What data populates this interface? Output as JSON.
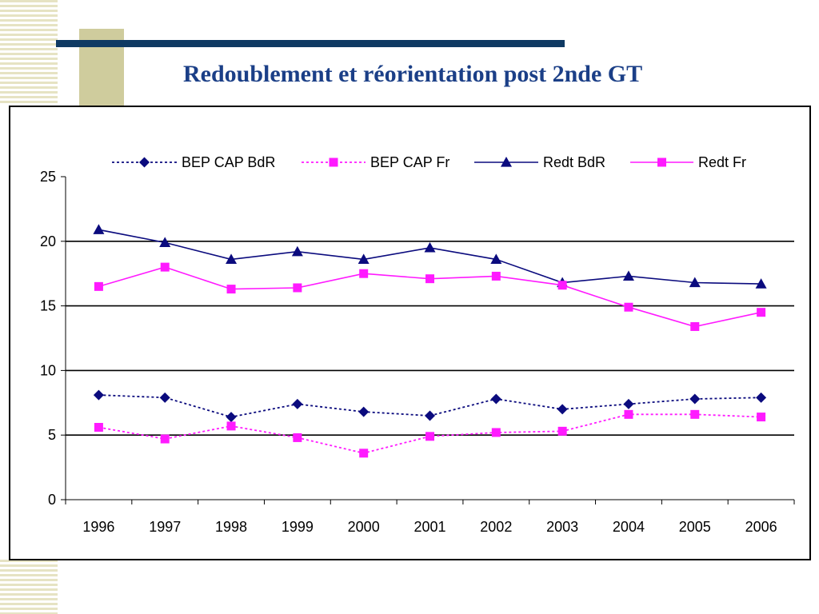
{
  "slide": {
    "title": "Redoublement et réorientation post 2nde GT"
  },
  "colors": {
    "navy_bar": "#0f3a63",
    "olive_block": "#cfcc9d",
    "stripes": "#e6e3c3",
    "title": "#1b3f87"
  },
  "chart_data": {
    "type": "line",
    "title": "",
    "xlabel": "",
    "ylabel": "",
    "categories": [
      "1996",
      "1997",
      "1998",
      "1999",
      "2000",
      "2001",
      "2002",
      "2003",
      "2004",
      "2005",
      "2006"
    ],
    "ylim": [
      0,
      25
    ],
    "yticks": [
      0,
      5,
      10,
      15,
      20,
      25
    ],
    "grid": "horizontal major gridlines",
    "legend_position": "top",
    "series": [
      {
        "name": "BEP CAP BdR",
        "color": "#0b0b7e",
        "line_style": "dotted",
        "marker": "diamond",
        "values": [
          8.1,
          7.9,
          6.4,
          7.4,
          6.8,
          6.5,
          7.8,
          7.0,
          7.4,
          7.8,
          7.9
        ]
      },
      {
        "name": "BEP CAP Fr",
        "color": "#ff1aff",
        "line_style": "dotted",
        "marker": "square",
        "values": [
          5.6,
          4.7,
          5.7,
          4.8,
          3.6,
          4.9,
          5.2,
          5.3,
          6.6,
          6.6,
          6.4
        ]
      },
      {
        "name": "Redt BdR",
        "color": "#0b0b7e",
        "line_style": "solid",
        "marker": "triangle",
        "values": [
          20.9,
          19.9,
          18.6,
          19.2,
          18.6,
          19.5,
          18.6,
          16.8,
          17.3,
          16.8,
          16.7
        ]
      },
      {
        "name": "Redt Fr",
        "color": "#ff1aff",
        "line_style": "solid",
        "marker": "square",
        "values": [
          16.5,
          18.0,
          16.3,
          16.4,
          17.5,
          17.1,
          17.3,
          16.6,
          14.9,
          13.4,
          14.5
        ]
      }
    ]
  }
}
